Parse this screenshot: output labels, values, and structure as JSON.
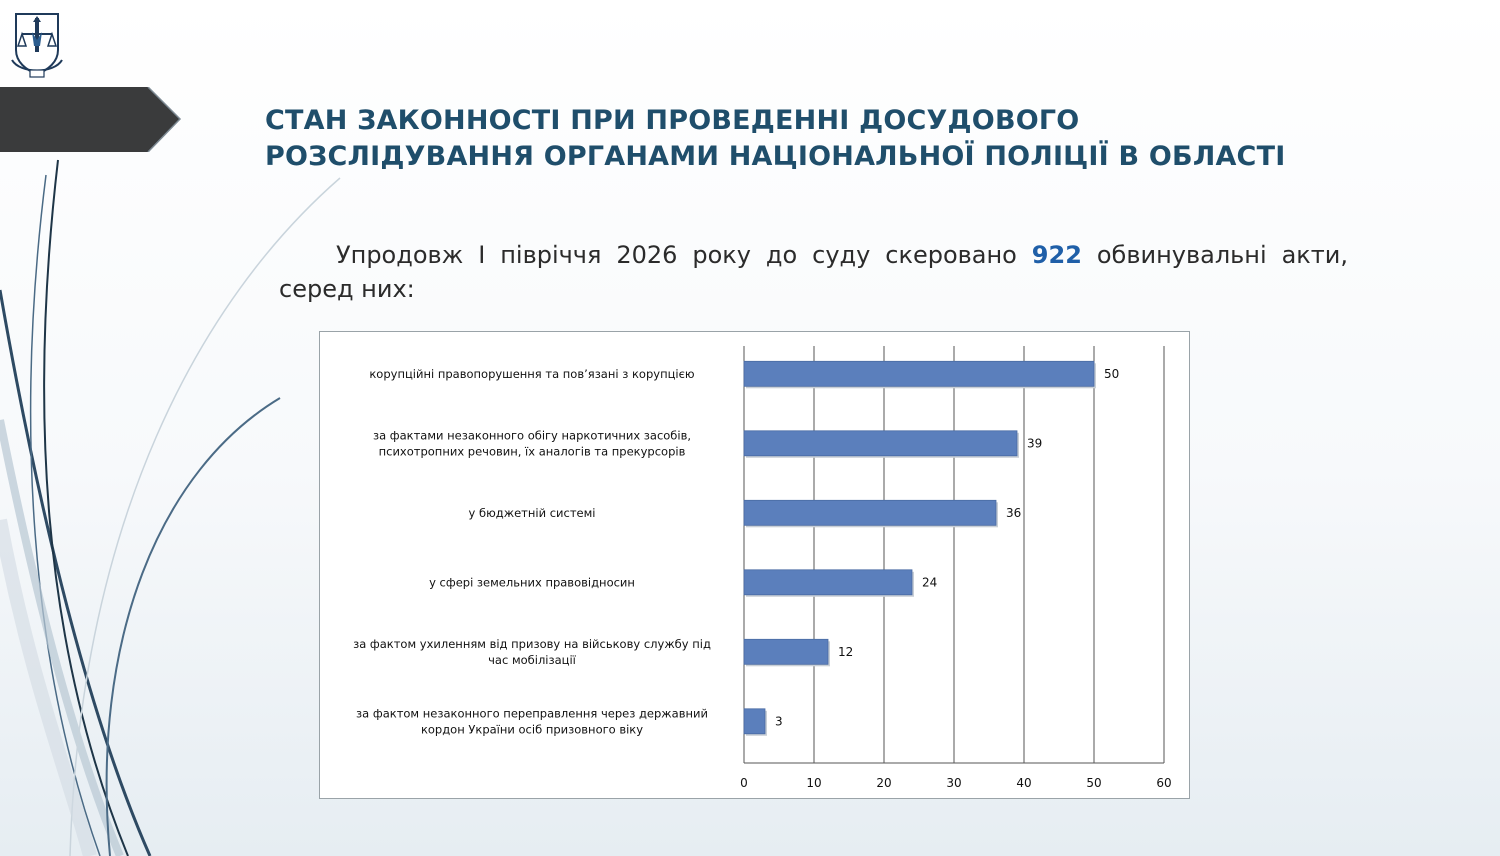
{
  "slide": {
    "title_line1": "СТАН ЗАКОННОСТІ ПРИ ПРОВЕДЕННІ ДОСУДОВОГО",
    "title_line2": "РОЗСЛІДУВАННЯ ОРГАНАМИ НАЦІОНАЛЬНОЇ ПОЛІЦІЇ В ОБЛАСТІ",
    "intro_before": "Упродовж І півріччя 2026 року до суду скеровано ",
    "intro_number": "922",
    "intro_after": " обвинувальні акти, серед них:",
    "accent_color": "#1f4e6b",
    "number_color": "#1f5fa8"
  },
  "chart_data": {
    "type": "bar",
    "orientation": "horizontal",
    "categories": [
      [
        "корупційні правопорушення та пов’язані з корупцією"
      ],
      [
        "за фактами незаконного обігу наркотичних засобів,",
        "психотропних речовин, їх аналогів та прекурсорів"
      ],
      [
        "у бюджетній системі"
      ],
      [
        "у сфері земельних правовідносин"
      ],
      [
        "за фактом ухиленням від призову на військову службу під",
        "час мобілізації"
      ],
      [
        "за фактом незаконного переправлення через державний",
        "кордон України осіб призовного віку"
      ]
    ],
    "values": [
      50,
      39,
      36,
      24,
      12,
      3
    ],
    "xlim": [
      0,
      60
    ],
    "ticks": [
      "0",
      "10",
      "20",
      "30",
      "40",
      "50",
      "60"
    ],
    "grid": true,
    "bar_color": "#5b7fbc",
    "title": "",
    "xlabel": "",
    "ylabel": ""
  }
}
